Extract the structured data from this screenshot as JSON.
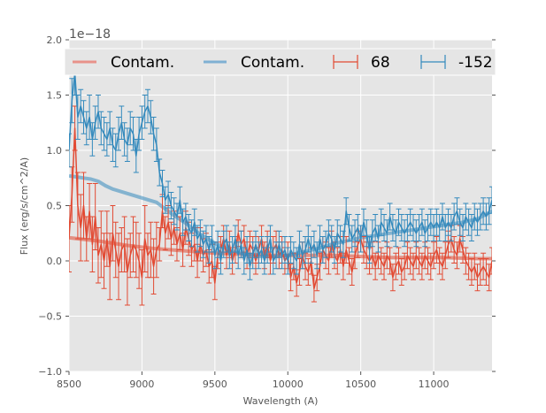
{
  "chart_data": {
    "type": "line",
    "title": "",
    "xlabel": "Wavelength (A)",
    "ylabel": "Flux (erg/s/cm^2/A)",
    "y_offset_label": "1e−18",
    "xlim": [
      8500,
      11400
    ],
    "ylim": [
      -1.0,
      2.0
    ],
    "x_ticks": [
      8500,
      9000,
      9500,
      10000,
      10500,
      11000
    ],
    "x_tick_labels": [
      "8500",
      "9000",
      "9500",
      "10000",
      "10500",
      "11000"
    ],
    "y_ticks": [
      -1.0,
      -0.5,
      0.0,
      0.5,
      1.0,
      1.5,
      2.0
    ],
    "y_tick_labels": [
      "−1.0",
      "−0.5",
      "0.0",
      "0.5",
      "1.0",
      "1.5",
      "2.0"
    ],
    "grid": true,
    "background": "#e5e5e5",
    "legend": {
      "placement": "top",
      "ncol": 4,
      "entries": [
        {
          "label": "Contam.",
          "kind": "line",
          "color": "#e8928a"
        },
        {
          "label": "Contam.",
          "kind": "line",
          "color": "#7fb0d3"
        },
        {
          "label": "68",
          "kind": "errorbar",
          "color": "#e24a33"
        },
        {
          "label": "-152",
          "kind": "errorbar",
          "color": "#348abd"
        }
      ]
    },
    "series": [
      {
        "name": "Contam. (68)",
        "kind": "contamination",
        "color": "#e24a33",
        "x": [
          8500,
          8700,
          8900,
          9100,
          9300,
          9500,
          9700,
          9900,
          10100,
          10300,
          10500,
          10700,
          10900,
          11100,
          11300,
          11400
        ],
        "y": [
          0.21,
          0.18,
          0.14,
          0.11,
          0.09,
          0.07,
          0.06,
          0.05,
          0.05,
          0.05,
          0.04,
          0.03,
          0.03,
          0.03,
          0.02,
          0.02
        ]
      },
      {
        "name": "Contam. (-152)",
        "kind": "contamination",
        "color": "#348abd",
        "x": [
          8500,
          8550,
          8600,
          8650,
          8700,
          8750,
          8800,
          8900,
          9000,
          9100,
          9150,
          9200,
          9300,
          9400,
          9500,
          9600,
          9700,
          9800,
          9900,
          10000,
          10100,
          10200,
          10300,
          10400,
          10500,
          10600,
          10700,
          10800,
          10900,
          11000,
          11100,
          11200,
          11300,
          11400
        ],
        "y": [
          0.77,
          0.76,
          0.75,
          0.74,
          0.72,
          0.68,
          0.65,
          0.61,
          0.57,
          0.53,
          0.48,
          0.43,
          0.34,
          0.24,
          0.16,
          0.1,
          0.06,
          0.04,
          0.04,
          0.05,
          0.08,
          0.11,
          0.15,
          0.18,
          0.21,
          0.23,
          0.25,
          0.27,
          0.29,
          0.31,
          0.33,
          0.35,
          0.38,
          0.45
        ]
      },
      {
        "name": "68",
        "kind": "errorbar",
        "color": "#e24a33",
        "x": [
          8500,
          8520,
          8540,
          8560,
          8580,
          8600,
          8620,
          8640,
          8660,
          8680,
          8700,
          8720,
          8740,
          8760,
          8780,
          8800,
          8820,
          8840,
          8860,
          8880,
          8900,
          8920,
          8940,
          8960,
          8980,
          9000,
          9020,
          9040,
          9060,
          9080,
          9100,
          9120,
          9140,
          9160,
          9180,
          9200,
          9220,
          9240,
          9260,
          9280,
          9300,
          9320,
          9340,
          9360,
          9380,
          9400,
          9420,
          9440,
          9460,
          9480,
          9500,
          9520,
          9540,
          9560,
          9580,
          9600,
          9620,
          9640,
          9660,
          9680,
          9700,
          9720,
          9740,
          9760,
          9780,
          9800,
          9820,
          9840,
          9860,
          9880,
          9900,
          9920,
          9940,
          9960,
          9980,
          10000,
          10020,
          10040,
          10060,
          10080,
          10100,
          10120,
          10140,
          10160,
          10180,
          10200,
          10220,
          10240,
          10260,
          10280,
          10300,
          10320,
          10340,
          10360,
          10380,
          10400,
          10420,
          10440,
          10460,
          10480,
          10500,
          10520,
          10540,
          10560,
          10580,
          10600,
          10620,
          10640,
          10660,
          10680,
          10700,
          10720,
          10740,
          10760,
          10780,
          10800,
          10820,
          10840,
          10860,
          10880,
          10900,
          10920,
          10940,
          10960,
          10980,
          11000,
          11020,
          11040,
          11060,
          11080,
          11100,
          11120,
          11140,
          11160,
          11180,
          11200,
          11220,
          11240,
          11260,
          11280,
          11300,
          11320,
          11340,
          11360,
          11380,
          11400
        ],
        "y": [
          0.2,
          0.6,
          1.2,
          0.5,
          0.3,
          0.5,
          0.2,
          0.45,
          0.15,
          0.4,
          0.05,
          0.15,
          0.0,
          0.2,
          -0.05,
          0.25,
          0.1,
          -0.05,
          0.1,
          0.15,
          -0.1,
          0.05,
          0.15,
          0.1,
          0.0,
          -0.15,
          0.2,
          0.05,
          0.1,
          -0.05,
          0.1,
          0.15,
          0.45,
          0.25,
          0.35,
          0.2,
          0.3,
          0.15,
          0.25,
          0.1,
          0.3,
          0.2,
          0.1,
          0.15,
          0.0,
          0.15,
          0.05,
          0.1,
          -0.05,
          0.0,
          -0.2,
          0.05,
          0.1,
          0.2,
          0.05,
          0.15,
          0.0,
          0.1,
          0.25,
          0.15,
          0.2,
          0.05,
          0.15,
          0.1,
          0.0,
          0.1,
          0.2,
          0.05,
          0.15,
          0.0,
          0.1,
          0.15,
          0.05,
          0.1,
          0.0,
          0.05,
          -0.15,
          -0.05,
          -0.2,
          -0.1,
          0.05,
          -0.05,
          -0.1,
          0.0,
          -0.25,
          -0.15,
          -0.05,
          0.1,
          0.05,
          0.0,
          0.15,
          0.05,
          0.0,
          0.1,
          -0.05,
          0.1,
          0.0,
          -0.1,
          0.05,
          0.15,
          0.2,
          0.1,
          0.05,
          0.0,
          0.05,
          -0.05,
          0.05,
          0.0,
          -0.05,
          0.05,
          0.0,
          -0.15,
          -0.05,
          0.0,
          -0.1,
          -0.05,
          0.05,
          0.0,
          -0.05,
          0.05,
          0.0,
          -0.05,
          0.05,
          0.0,
          -0.05,
          0.05,
          0.1,
          0.0,
          -0.05,
          0.05,
          0.15,
          0.2,
          0.1,
          0.05,
          0.2,
          0.1,
          0.0,
          -0.05,
          -0.1,
          -0.05,
          -0.15,
          -0.1,
          -0.05,
          -0.1,
          -0.15,
          0.0
        ],
        "err": [
          0.3,
          0.25,
          0.2,
          0.3,
          0.3,
          0.3,
          0.2,
          0.25,
          0.25,
          0.3,
          0.25,
          0.3,
          0.25,
          0.25,
          0.3,
          0.25,
          0.25,
          0.3,
          0.2,
          0.25,
          0.3,
          0.2,
          0.25,
          0.25,
          0.25,
          0.25,
          0.3,
          0.2,
          0.25,
          0.25,
          0.25,
          0.15,
          0.15,
          0.15,
          0.15,
          0.15,
          0.15,
          0.15,
          0.15,
          0.15,
          0.15,
          0.15,
          0.15,
          0.15,
          0.15,
          0.15,
          0.15,
          0.15,
          0.15,
          0.15,
          0.15,
          0.12,
          0.12,
          0.12,
          0.12,
          0.12,
          0.12,
          0.12,
          0.12,
          0.12,
          0.12,
          0.12,
          0.12,
          0.12,
          0.12,
          0.12,
          0.12,
          0.12,
          0.12,
          0.12,
          0.12,
          0.12,
          0.12,
          0.12,
          0.12,
          0.12,
          0.12,
          0.12,
          0.12,
          0.12,
          0.12,
          0.12,
          0.12,
          0.12,
          0.12,
          0.12,
          0.12,
          0.12,
          0.12,
          0.12,
          0.12,
          0.12,
          0.12,
          0.12,
          0.12,
          0.12,
          0.12,
          0.12,
          0.12,
          0.12,
          0.12,
          0.12,
          0.12,
          0.12,
          0.12,
          0.12,
          0.12,
          0.12,
          0.12,
          0.12,
          0.12,
          0.12,
          0.12,
          0.12,
          0.12,
          0.12,
          0.12,
          0.12,
          0.12,
          0.12,
          0.12,
          0.12,
          0.12,
          0.12,
          0.12,
          0.12,
          0.12,
          0.12,
          0.12,
          0.12,
          0.12,
          0.12,
          0.12,
          0.12,
          0.12,
          0.12,
          0.12,
          0.12,
          0.12,
          0.12,
          0.12,
          0.12,
          0.12,
          0.12,
          0.12,
          0.12
        ]
      },
      {
        "name": "-152",
        "kind": "errorbar",
        "color": "#348abd",
        "x": [
          8500,
          8520,
          8540,
          8560,
          8580,
          8600,
          8620,
          8640,
          8660,
          8680,
          8700,
          8720,
          8740,
          8760,
          8780,
          8800,
          8820,
          8840,
          8860,
          8880,
          8900,
          8920,
          8940,
          8960,
          8980,
          9000,
          9020,
          9040,
          9060,
          9080,
          9100,
          9120,
          9140,
          9160,
          9180,
          9200,
          9220,
          9240,
          9260,
          9280,
          9300,
          9320,
          9340,
          9360,
          9380,
          9400,
          9420,
          9440,
          9460,
          9480,
          9500,
          9520,
          9540,
          9560,
          9580,
          9600,
          9620,
          9640,
          9660,
          9680,
          9700,
          9720,
          9740,
          9760,
          9780,
          9800,
          9820,
          9840,
          9860,
          9880,
          9900,
          9920,
          9940,
          9960,
          9980,
          10000,
          10020,
          10040,
          10060,
          10080,
          10100,
          10120,
          10140,
          10160,
          10180,
          10200,
          10220,
          10240,
          10260,
          10280,
          10300,
          10320,
          10340,
          10360,
          10380,
          10400,
          10420,
          10440,
          10460,
          10480,
          10500,
          10520,
          10540,
          10560,
          10580,
          10600,
          10620,
          10640,
          10660,
          10680,
          10700,
          10720,
          10740,
          10760,
          10780,
          10800,
          10820,
          10840,
          10860,
          10880,
          10900,
          10920,
          10940,
          10960,
          10980,
          11000,
          11020,
          11040,
          11060,
          11080,
          11100,
          11120,
          11140,
          11160,
          11180,
          11200,
          11220,
          11240,
          11260,
          11280,
          11300,
          11320,
          11340,
          11360,
          11380,
          11400
        ],
        "y": [
          1.0,
          1.45,
          1.7,
          1.3,
          1.4,
          1.3,
          1.2,
          1.3,
          1.1,
          1.25,
          1.35,
          1.2,
          1.15,
          1.1,
          1.2,
          1.05,
          1.0,
          1.15,
          1.25,
          1.1,
          1.05,
          1.2,
          1.15,
          0.95,
          1.15,
          1.25,
          1.35,
          1.4,
          1.3,
          1.15,
          1.05,
          0.8,
          0.7,
          0.55,
          0.6,
          0.5,
          0.45,
          0.4,
          0.55,
          0.35,
          0.4,
          0.3,
          0.25,
          0.35,
          0.2,
          0.25,
          0.15,
          0.2,
          0.1,
          0.2,
          0.05,
          0.15,
          0.0,
          0.15,
          0.2,
          0.05,
          0.1,
          0.2,
          0.05,
          0.15,
          0.0,
          0.1,
          -0.05,
          0.05,
          0.15,
          0.05,
          0.1,
          0.0,
          0.1,
          0.2,
          0.0,
          0.05,
          0.15,
          0.05,
          0.1,
          0.0,
          0.1,
          0.05,
          0.0,
          0.15,
          0.05,
          0.1,
          0.2,
          0.1,
          0.15,
          0.05,
          0.2,
          0.1,
          0.15,
          0.25,
          0.2,
          0.1,
          0.25,
          0.2,
          0.15,
          0.45,
          0.3,
          0.2,
          0.25,
          0.3,
          0.2,
          0.35,
          0.25,
          0.1,
          0.25,
          0.3,
          0.2,
          0.35,
          0.3,
          0.25,
          0.4,
          0.3,
          0.25,
          0.35,
          0.3,
          0.25,
          0.3,
          0.35,
          0.3,
          0.25,
          0.3,
          0.35,
          0.25,
          0.3,
          0.35,
          0.3,
          0.35,
          0.3,
          0.4,
          0.3,
          0.35,
          0.3,
          0.4,
          0.45,
          0.35,
          0.3,
          0.4,
          0.35,
          0.3,
          0.4,
          0.35,
          0.4,
          0.45,
          0.4,
          0.45,
          0.55
        ],
        "err": [
          0.15,
          0.2,
          0.2,
          0.2,
          0.15,
          0.15,
          0.15,
          0.2,
          0.15,
          0.15,
          0.15,
          0.15,
          0.15,
          0.15,
          0.15,
          0.15,
          0.15,
          0.15,
          0.15,
          0.15,
          0.15,
          0.15,
          0.15,
          0.15,
          0.15,
          0.15,
          0.15,
          0.15,
          0.15,
          0.15,
          0.15,
          0.12,
          0.12,
          0.12,
          0.12,
          0.12,
          0.12,
          0.12,
          0.12,
          0.12,
          0.12,
          0.12,
          0.12,
          0.12,
          0.12,
          0.12,
          0.12,
          0.12,
          0.12,
          0.12,
          0.12,
          0.12,
          0.12,
          0.12,
          0.12,
          0.12,
          0.12,
          0.12,
          0.12,
          0.12,
          0.12,
          0.12,
          0.12,
          0.12,
          0.12,
          0.12,
          0.12,
          0.12,
          0.12,
          0.12,
          0.12,
          0.12,
          0.12,
          0.12,
          0.12,
          0.12,
          0.12,
          0.12,
          0.12,
          0.12,
          0.12,
          0.12,
          0.12,
          0.12,
          0.12,
          0.12,
          0.12,
          0.12,
          0.12,
          0.12,
          0.12,
          0.12,
          0.12,
          0.12,
          0.12,
          0.12,
          0.12,
          0.12,
          0.12,
          0.12,
          0.12,
          0.12,
          0.12,
          0.12,
          0.12,
          0.12,
          0.12,
          0.12,
          0.12,
          0.12,
          0.12,
          0.12,
          0.12,
          0.12,
          0.12,
          0.12,
          0.12,
          0.12,
          0.12,
          0.12,
          0.12,
          0.12,
          0.12,
          0.12,
          0.12,
          0.12,
          0.12,
          0.12,
          0.12,
          0.12,
          0.12,
          0.12,
          0.12,
          0.12,
          0.12,
          0.12,
          0.12,
          0.12,
          0.12,
          0.12,
          0.12,
          0.12,
          0.12,
          0.12,
          0.12,
          0.12
        ]
      }
    ]
  }
}
